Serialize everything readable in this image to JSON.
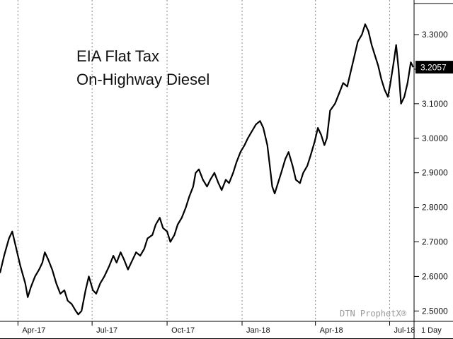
{
  "chart_data": {
    "type": "line",
    "title_lines": [
      "EIA Flat Tax",
      "On-Highway Diesel"
    ],
    "ylim": [
      2.47,
      3.39
    ],
    "y_ticks": [
      {
        "value": 3.3,
        "label": "3.3000"
      },
      {
        "value": 3.2,
        "label": ""
      },
      {
        "value": 3.1,
        "label": "3.1000"
      },
      {
        "value": 3.0,
        "label": "3.0000"
      },
      {
        "value": 2.9,
        "label": "2.9000"
      },
      {
        "value": 2.8,
        "label": "2.8000"
      },
      {
        "value": 2.7,
        "label": "2.7000"
      },
      {
        "value": 2.6,
        "label": "2.6000"
      },
      {
        "value": 2.5,
        "label": "2.5000"
      }
    ],
    "x_ticks": [
      {
        "label": "Apr-17",
        "date": "2017-04-01"
      },
      {
        "label": "Jul-17",
        "date": "2017-07-01"
      },
      {
        "label": "Oct-17",
        "date": "2017-10-01"
      },
      {
        "label": "Jan-18",
        "date": "2018-01-01"
      },
      {
        "label": "Apr-18",
        "date": "2018-04-01"
      },
      {
        "label": "Jul-18",
        "date": "2018-07-01"
      }
    ],
    "xlim": [
      "2017-03-10",
      "2018-07-31"
    ],
    "interval_label": "1 Day",
    "watermark": "DTN ProphetX®",
    "last_value": {
      "value": 3.2057,
      "label": "3.2057"
    },
    "grid": {
      "vertical": true,
      "horizontal": false
    },
    "line_color": "#000000",
    "series": [
      {
        "points": [
          [
            "2017-03-10",
            2.61
          ],
          [
            "2017-03-15",
            2.66
          ],
          [
            "2017-03-21",
            2.71
          ],
          [
            "2017-03-25",
            2.73
          ],
          [
            "2017-03-29",
            2.69
          ],
          [
            "2017-04-04",
            2.63
          ],
          [
            "2017-04-10",
            2.58
          ],
          [
            "2017-04-13",
            2.54
          ],
          [
            "2017-04-17",
            2.57
          ],
          [
            "2017-04-22",
            2.6
          ],
          [
            "2017-04-27",
            2.62
          ],
          [
            "2017-05-01",
            2.64
          ],
          [
            "2017-05-04",
            2.67
          ],
          [
            "2017-05-08",
            2.65
          ],
          [
            "2017-05-13",
            2.62
          ],
          [
            "2017-05-18",
            2.58
          ],
          [
            "2017-05-23",
            2.55
          ],
          [
            "2017-05-28",
            2.56
          ],
          [
            "2017-06-01",
            2.53
          ],
          [
            "2017-06-06",
            2.52
          ],
          [
            "2017-06-11",
            2.5
          ],
          [
            "2017-06-14",
            2.49
          ],
          [
            "2017-06-18",
            2.5
          ],
          [
            "2017-06-23",
            2.56
          ],
          [
            "2017-06-27",
            2.6
          ],
          [
            "2017-07-02",
            2.56
          ],
          [
            "2017-07-06",
            2.55
          ],
          [
            "2017-07-11",
            2.58
          ],
          [
            "2017-07-16",
            2.6
          ],
          [
            "2017-07-22",
            2.63
          ],
          [
            "2017-07-27",
            2.66
          ],
          [
            "2017-07-31",
            2.64
          ],
          [
            "2017-08-05",
            2.67
          ],
          [
            "2017-08-09",
            2.65
          ],
          [
            "2017-08-14",
            2.62
          ],
          [
            "2017-08-18",
            2.64
          ],
          [
            "2017-08-24",
            2.67
          ],
          [
            "2017-08-29",
            2.66
          ],
          [
            "2017-09-03",
            2.68
          ],
          [
            "2017-09-07",
            2.71
          ],
          [
            "2017-09-13",
            2.72
          ],
          [
            "2017-09-17",
            2.75
          ],
          [
            "2017-09-22",
            2.77
          ],
          [
            "2017-09-26",
            2.74
          ],
          [
            "2017-10-01",
            2.73
          ],
          [
            "2017-10-05",
            2.7
          ],
          [
            "2017-10-10",
            2.72
          ],
          [
            "2017-10-14",
            2.75
          ],
          [
            "2017-10-19",
            2.77
          ],
          [
            "2017-10-24",
            2.8
          ],
          [
            "2017-10-28",
            2.83
          ],
          [
            "2017-11-02",
            2.86
          ],
          [
            "2017-11-05",
            2.9
          ],
          [
            "2017-11-09",
            2.91
          ],
          [
            "2017-11-14",
            2.88
          ],
          [
            "2017-11-19",
            2.86
          ],
          [
            "2017-11-23",
            2.88
          ],
          [
            "2017-11-28",
            2.9
          ],
          [
            "2017-12-03",
            2.87
          ],
          [
            "2017-12-07",
            2.85
          ],
          [
            "2017-12-12",
            2.88
          ],
          [
            "2017-12-16",
            2.87
          ],
          [
            "2017-12-21",
            2.9
          ],
          [
            "2017-12-25",
            2.93
          ],
          [
            "2017-12-30",
            2.96
          ],
          [
            "2018-01-04",
            2.98
          ],
          [
            "2018-01-08",
            3.0
          ],
          [
            "2018-01-13",
            3.02
          ],
          [
            "2018-01-18",
            3.04
          ],
          [
            "2018-01-23",
            3.05
          ],
          [
            "2018-01-27",
            3.03
          ],
          [
            "2018-02-01",
            2.98
          ],
          [
            "2018-02-04",
            2.92
          ],
          [
            "2018-02-07",
            2.86
          ],
          [
            "2018-02-10",
            2.84
          ],
          [
            "2018-02-14",
            2.87
          ],
          [
            "2018-02-18",
            2.9
          ],
          [
            "2018-02-23",
            2.94
          ],
          [
            "2018-02-27",
            2.96
          ],
          [
            "2018-03-04",
            2.92
          ],
          [
            "2018-03-08",
            2.88
          ],
          [
            "2018-03-13",
            2.87
          ],
          [
            "2018-03-17",
            2.9
          ],
          [
            "2018-03-22",
            2.92
          ],
          [
            "2018-03-26",
            2.95
          ],
          [
            "2018-03-31",
            2.99
          ],
          [
            "2018-04-04",
            3.03
          ],
          [
            "2018-04-08",
            3.01
          ],
          [
            "2018-04-12",
            2.98
          ],
          [
            "2018-04-15",
            3.0
          ],
          [
            "2018-04-19",
            3.08
          ],
          [
            "2018-04-25",
            3.1
          ],
          [
            "2018-04-30",
            3.13
          ],
          [
            "2018-05-05",
            3.16
          ],
          [
            "2018-05-10",
            3.15
          ],
          [
            "2018-05-14",
            3.19
          ],
          [
            "2018-05-18",
            3.23
          ],
          [
            "2018-05-23",
            3.28
          ],
          [
            "2018-05-28",
            3.3
          ],
          [
            "2018-06-01",
            3.33
          ],
          [
            "2018-06-05",
            3.31
          ],
          [
            "2018-06-09",
            3.27
          ],
          [
            "2018-06-13",
            3.24
          ],
          [
            "2018-06-17",
            3.21
          ],
          [
            "2018-06-21",
            3.17
          ],
          [
            "2018-06-25",
            3.14
          ],
          [
            "2018-06-29",
            3.12
          ],
          [
            "2018-07-02",
            3.16
          ],
          [
            "2018-07-06",
            3.22
          ],
          [
            "2018-07-09",
            3.27
          ],
          [
            "2018-07-12",
            3.2
          ],
          [
            "2018-07-15",
            3.1
          ],
          [
            "2018-07-19",
            3.12
          ],
          [
            "2018-07-23",
            3.16
          ],
          [
            "2018-07-27",
            3.22
          ],
          [
            "2018-07-30",
            3.2057
          ]
        ]
      }
    ]
  }
}
